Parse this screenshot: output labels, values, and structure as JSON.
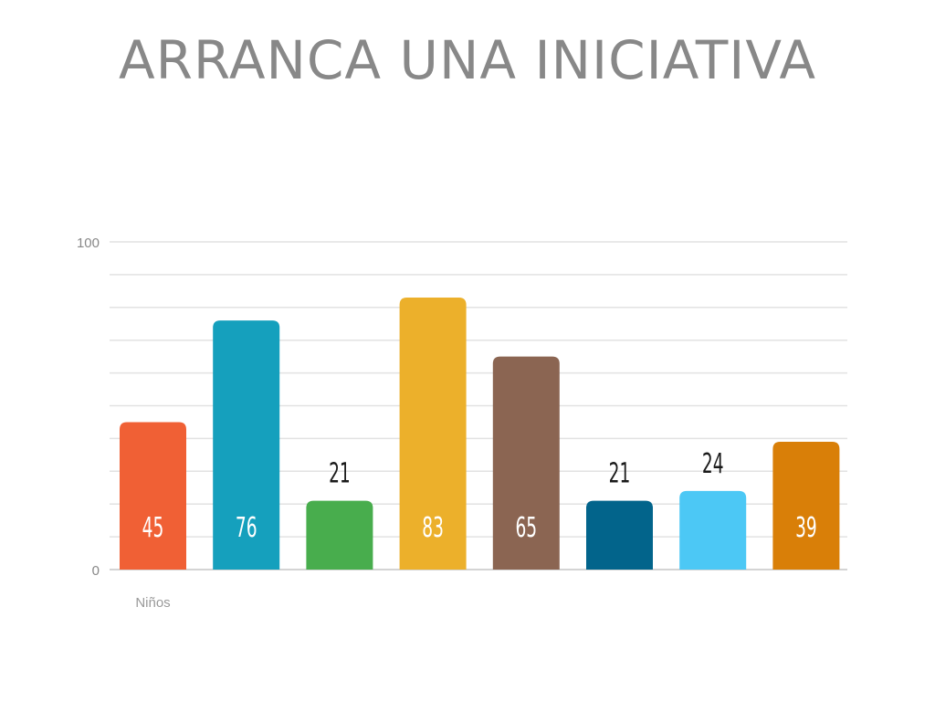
{
  "slide": {
    "title": "ARRANCA UNA INICIATIVA"
  },
  "chart_data": {
    "type": "bar",
    "categories": [
      "Niños",
      "",
      "",
      "",
      "",
      "",
      "",
      ""
    ],
    "values": [
      45,
      76,
      21,
      83,
      65,
      21,
      24,
      39
    ],
    "colors": [
      "#f06035",
      "#15a0bd",
      "#48ad4d",
      "#ecb02b",
      "#8b6552",
      "#02648b",
      "#4cc8f5",
      "#d97f08"
    ],
    "label_inside": [
      true,
      true,
      false,
      true,
      true,
      false,
      false,
      true
    ],
    "inside_label_color": "#ffffff",
    "outside_label_color": "#1a1a1a",
    "yticks": [
      "0",
      "100"
    ],
    "ylim": [
      0,
      100
    ],
    "grid": true,
    "gridlines_every": 10,
    "title": "",
    "xlabel": "",
    "ylabel": ""
  }
}
